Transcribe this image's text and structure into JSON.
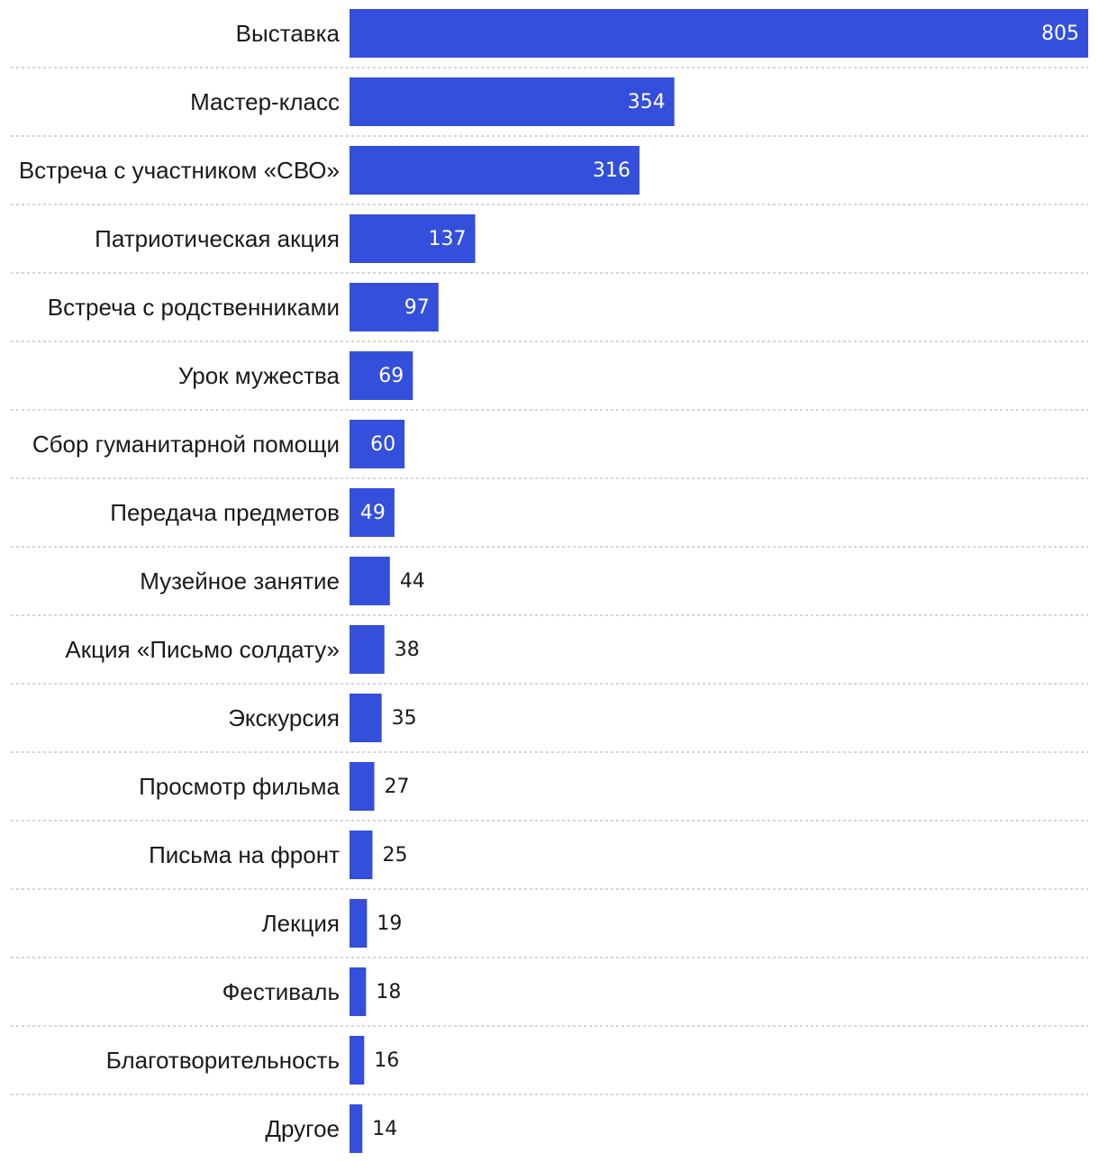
{
  "chart_data": {
    "type": "bar",
    "orientation": "horizontal",
    "title": "",
    "xlabel": "",
    "ylabel": "",
    "xlim": [
      0,
      805
    ],
    "grid": false,
    "legend": "none",
    "bar_color": "#334fdb",
    "value_label_inside_color": "#ffffff",
    "value_label_outside_color": "#1a1a1a",
    "divider_color": "#c8c8c8",
    "categories": [
      "Выставка",
      "Мастер-класс",
      "Встреча с участником «СВО»",
      "Патриотическая акция",
      "Встреча с родственниками",
      "Урок мужества",
      "Сбор гуманитарной помощи",
      "Передача предметов",
      "Музейное занятие",
      "Акция «Письмо солдату»",
      "Экскурсия",
      "Просмотр фильма",
      "Письма на фронт",
      "Лекция",
      "Фестиваль",
      "Благотворительность",
      "Другое"
    ],
    "values": [
      805,
      354,
      316,
      137,
      97,
      69,
      60,
      49,
      44,
      38,
      35,
      27,
      25,
      19,
      18,
      16,
      14
    ]
  }
}
